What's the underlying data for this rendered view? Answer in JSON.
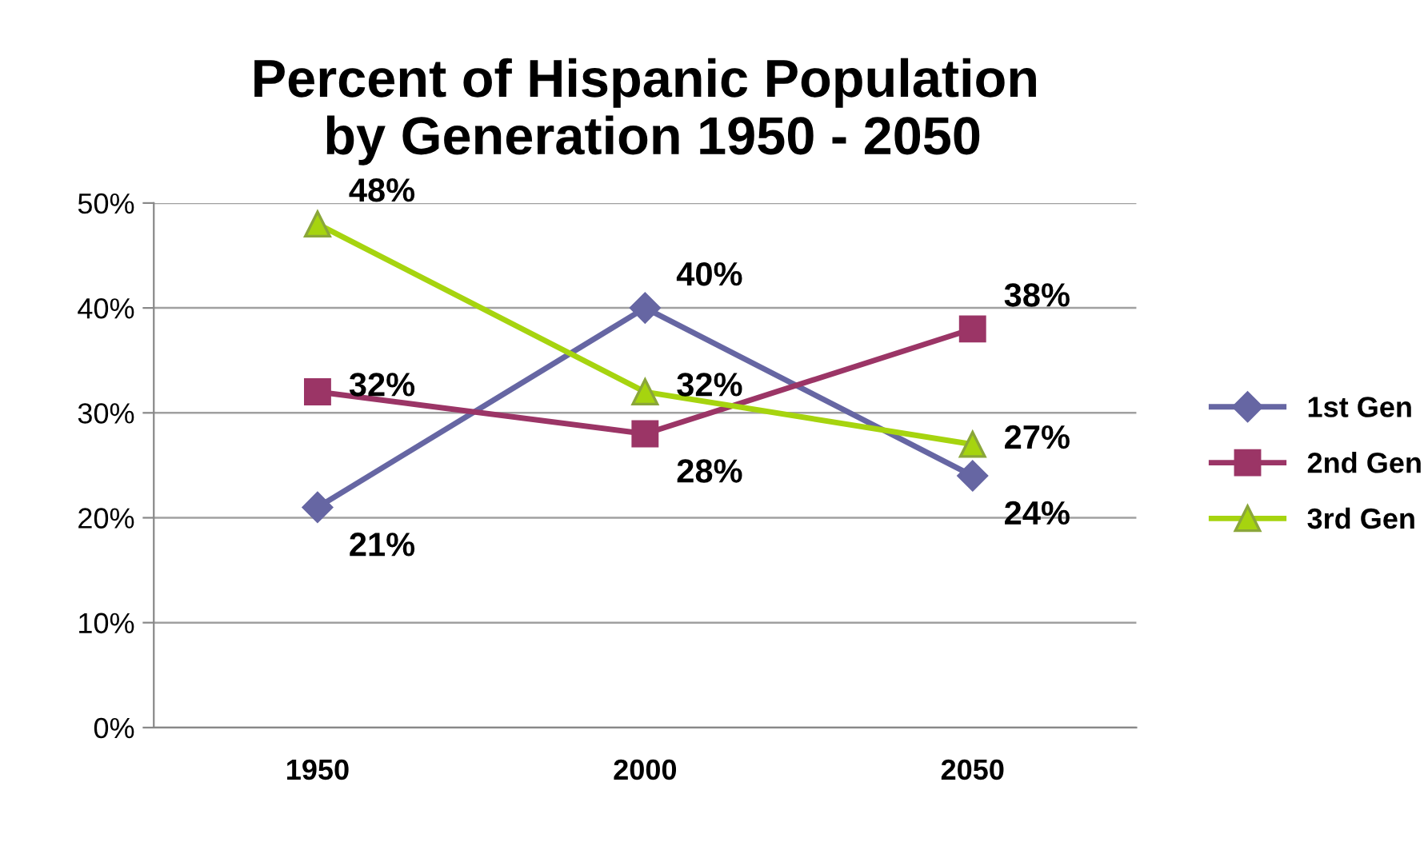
{
  "chart_data": {
    "type": "line",
    "title": "Percent of Hispanic Population\n by Generation 1950 - 2050",
    "categories": [
      "1950",
      "2000",
      "2050"
    ],
    "series": [
      {
        "name": "1st Gen",
        "color": "#6666a3",
        "marker": "diamond",
        "values": [
          21,
          40,
          24
        ],
        "value_labels": [
          "21%",
          "40%",
          "24%"
        ]
      },
      {
        "name": "2nd Gen",
        "color": "#9b3566",
        "marker": "square",
        "values": [
          32,
          28,
          38
        ],
        "value_labels": [
          "32%",
          "28%",
          "38%"
        ]
      },
      {
        "name": "3rd Gen",
        "color": "#a6d40f",
        "marker": "triangle",
        "values": [
          48,
          32,
          27
        ],
        "value_labels": [
          "48%",
          "32%",
          "27%"
        ]
      }
    ],
    "ylim": [
      0,
      50
    ],
    "yticks": [
      {
        "value": 0,
        "label": "0%"
      },
      {
        "value": 10,
        "label": "10%"
      },
      {
        "value": 20,
        "label": "20%"
      },
      {
        "value": 30,
        "label": "30%"
      },
      {
        "value": 40,
        "label": "40%"
      },
      {
        "value": 50,
        "label": "50%"
      }
    ],
    "grid": "y",
    "legend": "right",
    "line_style": "solid"
  }
}
